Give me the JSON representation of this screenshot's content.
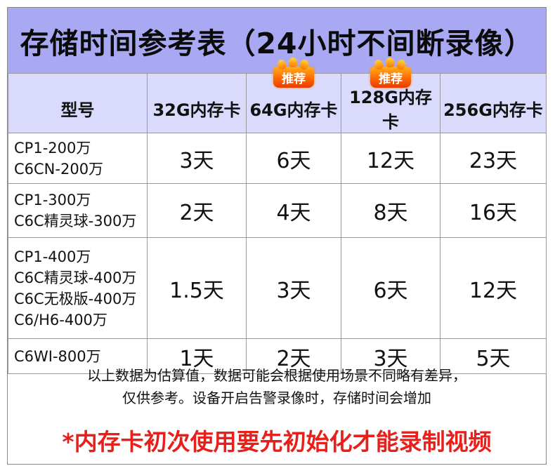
{
  "title": "存储时间参考表（24小时不间断录像）",
  "header": {
    "col0": "型号",
    "cols": [
      {
        "label": "32G内存卡",
        "badge": ""
      },
      {
        "label": "64G内存卡",
        "badge": "推荐"
      },
      {
        "label": "128G内存卡",
        "badge": "推荐"
      },
      {
        "label": "256G内存卡",
        "badge": ""
      }
    ]
  },
  "rows": [
    {
      "models": [
        "CP1-200万",
        "C6CN-200万"
      ],
      "values": [
        "3天",
        "6天",
        "12天",
        "23天"
      ]
    },
    {
      "models": [
        "CP1-300万",
        "C6C精灵球-300万"
      ],
      "values": [
        "2天",
        "4天",
        "8天",
        "16天"
      ]
    },
    {
      "models": [
        "CP1-400万",
        "C6C精灵球-400万",
        "C6C无极版-400万",
        "C6/H6-400万"
      ],
      "values": [
        "1.5天",
        "3天",
        "6天",
        "12天"
      ]
    },
    {
      "models": [
        "C6WI-800万"
      ],
      "values": [
        "1天",
        "2天",
        "3天",
        "5天"
      ]
    }
  ],
  "notes": {
    "line1": "以上数据为估算值，数据可能会根据使用场景不同略有差异，",
    "line2": "仅供参考。设备开启告警录像时，存储时间会增加"
  },
  "warning": "*内存卡初次使用要先初始化才能录制视频",
  "colors": {
    "title_bg": "#a9a8f2",
    "header_bg": "#d9dafc",
    "warning": "#e8201c",
    "badge": "#ff6a00"
  }
}
